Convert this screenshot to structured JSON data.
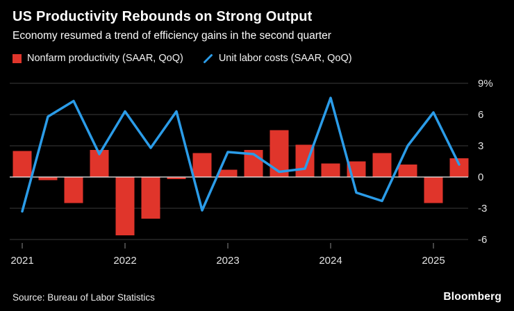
{
  "header": {
    "title": "US Productivity Rebounds on Strong Output",
    "subtitle": "Economy resumed a trend of efficiency gains in the second quarter"
  },
  "legend": [
    {
      "label": "Nonfarm productivity (SAAR, QoQ)",
      "marker": "square",
      "color": "#e0352b"
    },
    {
      "label": "Unit labor costs (SAAR, QoQ)",
      "marker": "line",
      "color": "#2b9ce8"
    }
  ],
  "footer": {
    "source": "Source: Bureau of Labor Statistics",
    "brand": "Bloomberg"
  },
  "colors": {
    "background": "#000000",
    "grid": "#3d3d3d",
    "zero_line": "#f0f0f0",
    "axis_labels": "#e3e3e3",
    "tick": "#8a8a8a"
  },
  "chart_data": {
    "type": "bar",
    "title": "US Productivity Rebounds on Strong Output",
    "subtitle": "Economy resumed a trend of efficiency gains in the second quarter",
    "xlabel": "",
    "ylabel": "%",
    "ylim": [
      -6.9,
      9.7
    ],
    "grid": true,
    "legend_position": "top",
    "categories": [
      "2021 Q1",
      "2021 Q2",
      "2021 Q3",
      "2021 Q4",
      "2022 Q1",
      "2022 Q2",
      "2022 Q3",
      "2022 Q4",
      "2023 Q1",
      "2023 Q2",
      "2023 Q3",
      "2023 Q4",
      "2024 Q1",
      "2024 Q2",
      "2024 Q3",
      "2024 Q4",
      "2025 Q1",
      "2025 Q2"
    ],
    "x_tick_labels": [
      "2021",
      "2022",
      "2023",
      "2024",
      "2025"
    ],
    "y_ticks": [
      9,
      6,
      3,
      0,
      -3,
      -6
    ],
    "y_tick_labels": [
      "9%",
      "6",
      "3",
      "0",
      "-3",
      "-6"
    ],
    "series": [
      {
        "name": "Nonfarm productivity (SAAR, QoQ)",
        "type": "bar",
        "color": "#e0352b",
        "values": [
          2.5,
          -0.3,
          -2.5,
          2.6,
          -5.6,
          -4.0,
          -0.2,
          2.3,
          0.7,
          2.6,
          4.5,
          3.1,
          1.3,
          1.5,
          2.3,
          1.2,
          -2.5,
          1.8
        ]
      },
      {
        "name": "Unit labor costs (SAAR, QoQ)",
        "type": "line",
        "color": "#2b9ce8",
        "values": [
          -3.3,
          5.8,
          7.3,
          2.2,
          6.3,
          2.8,
          6.3,
          -3.2,
          2.4,
          2.2,
          0.5,
          0.8,
          7.6,
          -1.5,
          -2.3,
          3.0,
          6.2,
          1.2
        ]
      }
    ]
  }
}
